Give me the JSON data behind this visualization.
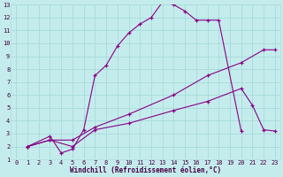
{
  "xlabel": "Windchill (Refroidissement éolien,°C)",
  "bg_color": "#c5ecec",
  "line_color": "#880088",
  "grid_color": "#aadddd",
  "xlim": [
    -0.5,
    23.5
  ],
  "ylim": [
    1,
    13
  ],
  "xticks": [
    0,
    1,
    2,
    3,
    4,
    5,
    6,
    7,
    8,
    9,
    10,
    11,
    12,
    13,
    14,
    15,
    16,
    17,
    18,
    19,
    20,
    21,
    22,
    23
  ],
  "yticks": [
    1,
    2,
    3,
    4,
    5,
    6,
    7,
    8,
    9,
    10,
    11,
    12,
    13
  ],
  "line1_x": [
    1,
    3,
    4,
    5,
    6,
    7,
    8,
    9,
    10,
    11,
    12,
    13,
    14,
    15,
    16,
    17,
    18,
    20
  ],
  "line1_y": [
    2,
    2.8,
    1.5,
    1.8,
    3.3,
    7.5,
    8.3,
    9.8,
    10.8,
    11.5,
    12.0,
    13.2,
    13.0,
    12.5,
    11.8,
    11.8,
    11.8,
    3.2
  ],
  "line2_x": [
    1,
    3,
    5,
    7,
    10,
    14,
    17,
    20,
    22,
    23
  ],
  "line2_y": [
    2,
    2.5,
    2.5,
    3.5,
    4.5,
    6.0,
    7.5,
    8.5,
    9.5,
    9.5
  ],
  "line3_x": [
    1,
    3,
    5,
    7,
    10,
    14,
    17,
    20,
    21,
    22,
    23
  ],
  "line3_y": [
    2,
    2.5,
    2.0,
    3.3,
    3.8,
    4.8,
    5.5,
    6.5,
    5.2,
    3.3,
    3.2
  ]
}
